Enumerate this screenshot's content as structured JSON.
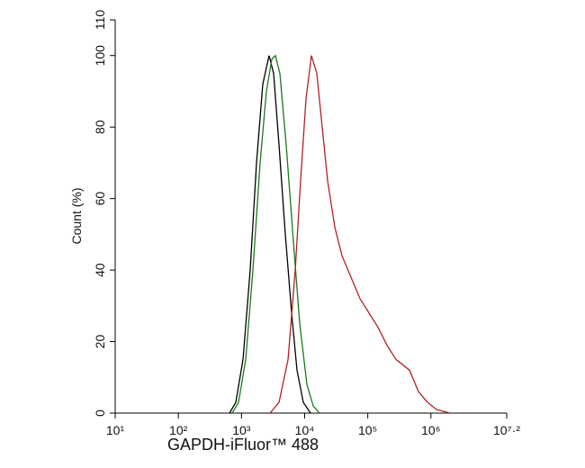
{
  "chart_data": {
    "type": "line",
    "x_label": "GAPDH-iFluor™ 488",
    "y_label": "Count  (%)",
    "xscale": "log",
    "xlim": [
      10,
      15848931.92
    ],
    "xticks": [
      {
        "value": 10,
        "label": "10¹"
      },
      {
        "value": 100,
        "label": "10²"
      },
      {
        "value": 1000,
        "label": "10³"
      },
      {
        "value": 10000,
        "label": "10⁴"
      },
      {
        "value": 100000,
        "label": "10⁵"
      },
      {
        "value": 1000000,
        "label": "10⁶"
      },
      {
        "value": 15848931.92,
        "label": "10⁷·²"
      }
    ],
    "ylim": [
      0,
      110
    ],
    "yticks": [
      0,
      20,
      40,
      60,
      80,
      100,
      110
    ],
    "series": [
      {
        "color": "#000000",
        "x": [
          646,
          813,
          1057,
          1374,
          1730,
          2175,
          2735,
          3227,
          3930,
          4943,
          6220,
          7570,
          9530,
          12390
        ],
        "values": [
          0,
          3,
          15,
          40,
          70,
          92,
          100,
          95,
          75,
          50,
          28,
          12,
          3,
          0
        ]
      },
      {
        "color": "#1a7a1a",
        "x": [
          713,
          897,
          1167,
          1517,
          1972,
          2483,
          3020,
          3444,
          4058,
          5105,
          6637,
          8360,
          10870,
          13680,
          17180
        ],
        "values": [
          0,
          3,
          15,
          40,
          70,
          90,
          99,
          100,
          95,
          75,
          48,
          25,
          8,
          2,
          0
        ]
      },
      {
        "color": "#b22222",
        "x": [
          2830,
          3930,
          5460,
          7100,
          8630,
          10520,
          12800,
          15590,
          18970,
          23110,
          30060,
          39080,
          54200,
          75300,
          104500,
          145200,
          201400,
          279800,
          458000,
          635000,
          883000,
          1225000,
          2004000
        ],
        "values": [
          0,
          3,
          15,
          40,
          65,
          88,
          100,
          95,
          80,
          65,
          52,
          44,
          38,
          32,
          28,
          24,
          19,
          15,
          12,
          6,
          3,
          1,
          0
        ]
      }
    ]
  }
}
